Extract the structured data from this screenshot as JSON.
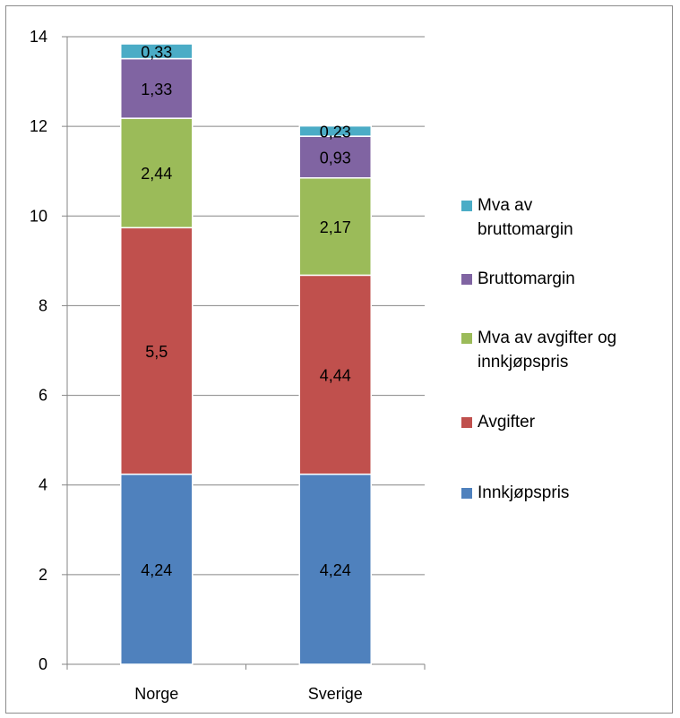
{
  "chart_data": {
    "type": "bar",
    "stacked": true,
    "categories": [
      "Norge",
      "Sverige"
    ],
    "series": [
      {
        "name": "Innkjøpspris",
        "color": "#4f81bd",
        "values": [
          4.24,
          4.24
        ],
        "labels": [
          "4,24",
          "4,24"
        ]
      },
      {
        "name": "Avgifter",
        "color": "#c0504d",
        "values": [
          5.5,
          4.44
        ],
        "labels": [
          "5,5",
          "4,44"
        ]
      },
      {
        "name": "Mva av avgifter og innkjøpspris",
        "color": "#9bbb59",
        "values": [
          2.44,
          2.17
        ],
        "labels": [
          "2,44",
          "2,17"
        ]
      },
      {
        "name": "Bruttomargin",
        "color": "#8064a2",
        "values": [
          1.33,
          0.93
        ],
        "labels": [
          "1,33",
          "0,93"
        ]
      },
      {
        "name": "Mva av bruttomargin",
        "color": "#4bacc6",
        "values": [
          0.33,
          0.23
        ],
        "labels": [
          "0,33",
          "0,23"
        ]
      }
    ],
    "ylim": [
      0,
      14
    ],
    "yticks": [
      0,
      2,
      4,
      6,
      8,
      10,
      12,
      14
    ],
    "grid": true,
    "legend_position": "right",
    "legend_order": [
      "Mva av bruttomargin",
      "Bruttomargin",
      "Mva av avgifter og innkjøpspris",
      "Avgifter",
      "Innkjøpspris"
    ],
    "legend_lines": [
      [
        "Mva av",
        "bruttomargin"
      ],
      [
        "Bruttomargin"
      ],
      [
        "Mva av avgifter og",
        "innkjøpspris"
      ],
      [
        "Avgifter"
      ],
      [
        "Innkjøpspris"
      ]
    ],
    "title": "",
    "xlabel": "",
    "ylabel": ""
  }
}
